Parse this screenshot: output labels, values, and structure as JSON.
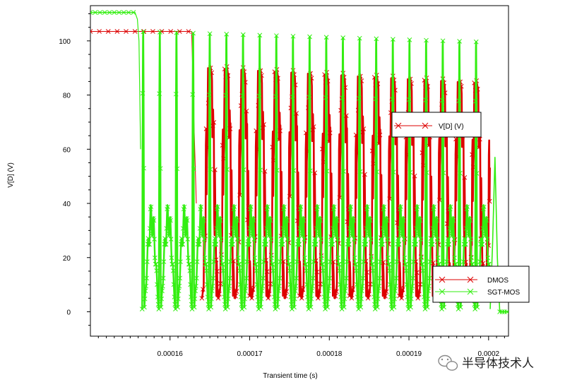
{
  "chart_data": {
    "type": "line",
    "title": "",
    "xlabel": "Transient time (s)",
    "ylabel": "V[D] (V)",
    "xlim": [
      0.00015,
      0.0002025
    ],
    "ylim": [
      -9,
      113
    ],
    "x_ticks": [
      0.00016,
      0.00017,
      0.00018,
      0.00019,
      0.0002
    ],
    "x_tick_labels": [
      "0.00016",
      "0.00017",
      "0.00018",
      "0.00019",
      "0.0002"
    ],
    "y_ticks": [
      0,
      20,
      40,
      60,
      80,
      100
    ],
    "y_tick_labels": [
      "0",
      "20",
      "40",
      "60",
      "80",
      "100"
    ],
    "series": [
      {
        "name": "DMOS",
        "color": "#dd0000",
        "marker": "x",
        "initial_level": 103.5,
        "initial_until": 0.0001628,
        "oscillation_start": 0.000164,
        "oscillation_end": 0.0002002,
        "oscillation_max": 91,
        "oscillation_min_late": 85,
        "oscillation_low": 5,
        "period": 2.09e-06
      },
      {
        "name": "SGT-MOS",
        "color": "#33ee11",
        "marker": "x",
        "initial_level": 110.5,
        "initial_until": 0.0001557,
        "oscillation_start": 0.0001565,
        "oscillation_end": 0.0002002,
        "first_peak": 105,
        "last_peak": 101,
        "oscillation_low": 1,
        "mid_lobe": 40,
        "period": 2.09e-06,
        "tail_spike": 57,
        "tail_level": 0
      }
    ],
    "legends": [
      {
        "position": "right-middle",
        "entries": [
          "V[D] (V)"
        ]
      },
      {
        "position": "bottom-right",
        "entries": [
          "DMOS",
          "SGT-MOS"
        ]
      }
    ]
  },
  "watermark": {
    "text": "半导体技术人",
    "icon": "wechat-icon"
  }
}
